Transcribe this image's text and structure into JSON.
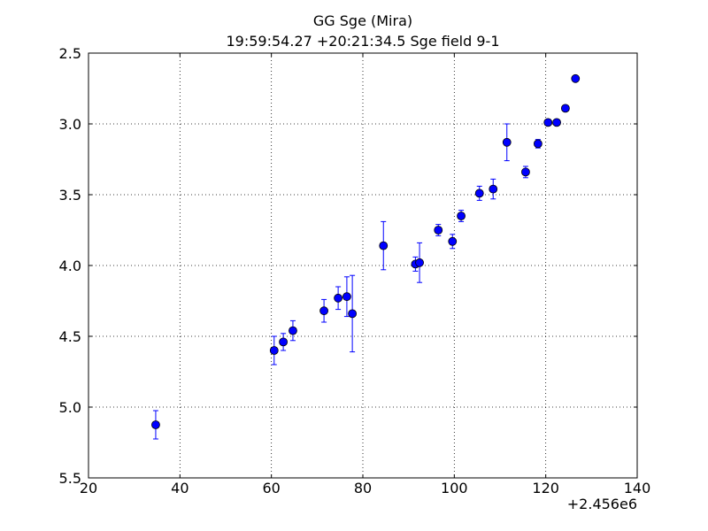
{
  "chart_data": {
    "type": "scatter",
    "title": "GG Sge (Mira)",
    "subtitle": "19:59:54.27 +20:21:34.5 Sge field 9-1",
    "x_offset_label": "+2.456e6",
    "xlim": [
      20,
      140
    ],
    "xticks": [
      20,
      40,
      60,
      80,
      100,
      120,
      140
    ],
    "ylim": [
      5.5,
      2.5
    ],
    "yticks": [
      2.5,
      {
        "value": 3,
        "label": "3.0"
      },
      3.5,
      {
        "value": 4,
        "label": "4.0"
      },
      4.5,
      {
        "value": 5,
        "label": "5.0"
      },
      5.5
    ],
    "grid": true,
    "series": [
      {
        "color": "#0000ff",
        "x": [
          34.7,
          60.6,
          62.6,
          64.7,
          71.5,
          74.6,
          76.5,
          77.7,
          84.5,
          91.5,
          92.4,
          96.5,
          99.6,
          101.5,
          105.5,
          108.5,
          111.5,
          115.6,
          118.3,
          120.5,
          122.4,
          124.3,
          126.5
        ],
        "values": [
          5.125,
          4.6,
          4.54,
          4.46,
          4.32,
          4.23,
          4.22,
          4.34,
          3.86,
          3.99,
          3.98,
          3.75,
          3.83,
          3.65,
          3.49,
          3.46,
          3.13,
          3.34,
          3.14,
          2.99,
          2.99,
          2.89,
          2.68
        ],
        "errors": [
          0.1,
          0.1,
          0.06,
          0.07,
          0.08,
          0.08,
          0.14,
          0.27,
          0.17,
          0.05,
          0.14,
          0.04,
          0.05,
          0.04,
          0.05,
          0.07,
          0.13,
          0.04,
          0.03,
          0.02,
          0.02,
          0.01,
          0.01
        ]
      }
    ]
  }
}
